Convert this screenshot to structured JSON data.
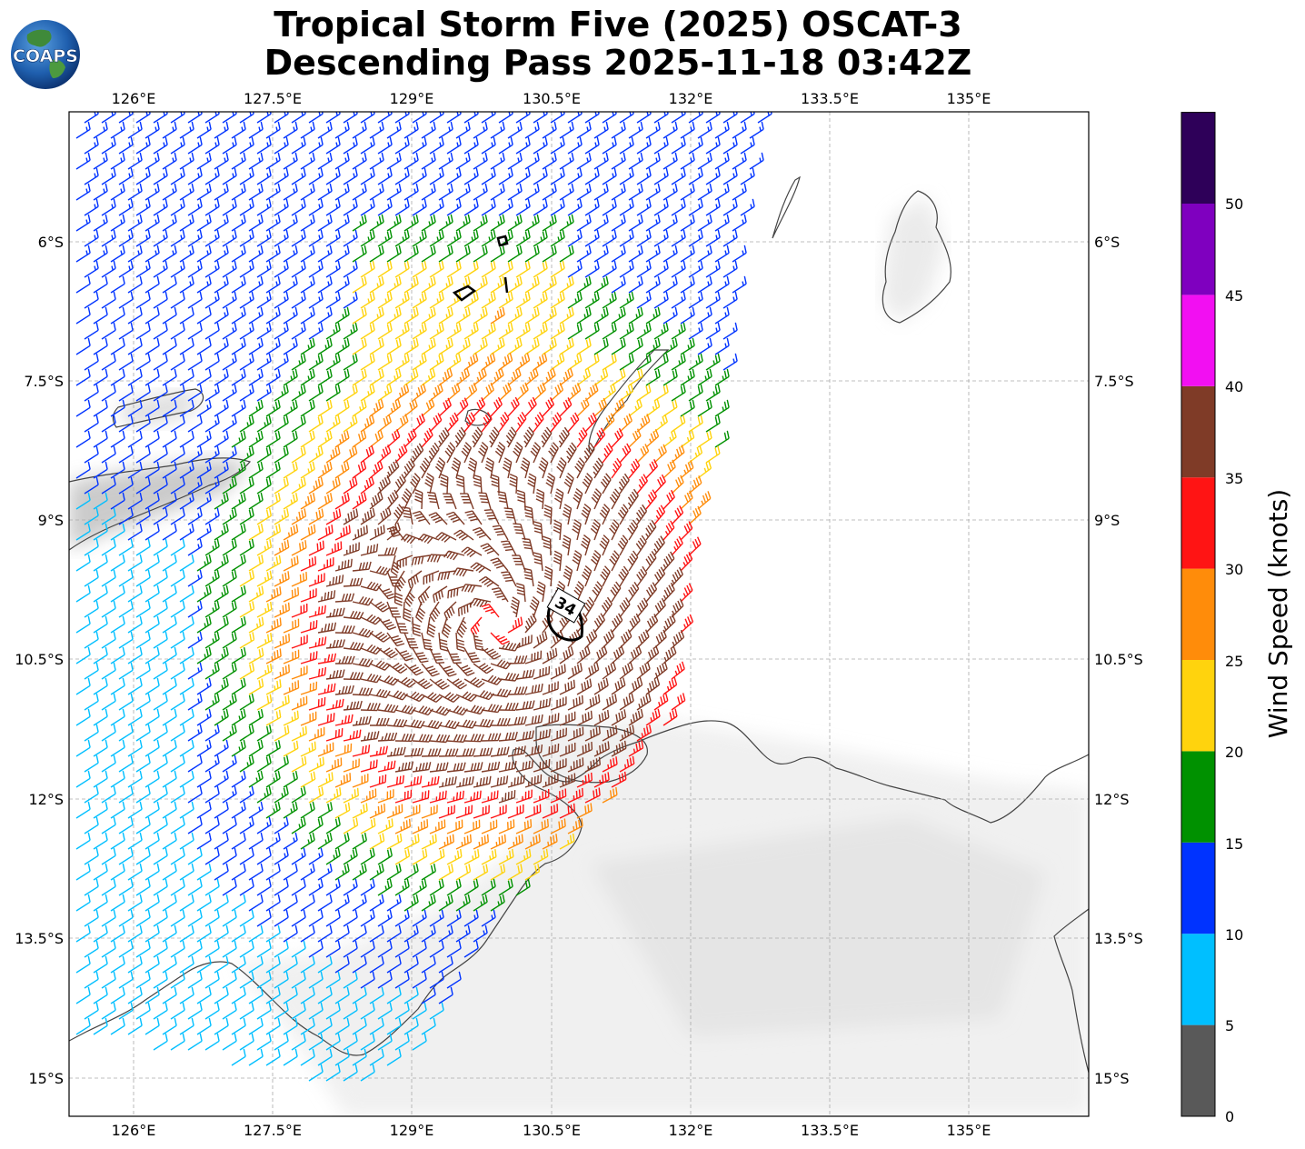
{
  "title": {
    "line1": "Tropical Storm Five (2025) OSCAT-3",
    "line2": "Descending Pass 2025-11-18 03:42Z"
  },
  "logo": {
    "text": "COAPS"
  },
  "map": {
    "lon_labels": [
      "126°E",
      "127.5°E",
      "129°E",
      "130.5°E",
      "132°E",
      "133.5°E",
      "135°E"
    ],
    "lat_labels": [
      "6°S",
      "7.5°S",
      "9°S",
      "10.5°S",
      "12°S",
      "13.5°S",
      "15°S"
    ],
    "contour_label": "34",
    "storm_center": {
      "lon": 129.9,
      "lat": -10.1
    }
  },
  "colorbar": {
    "label": "Wind Speed (knots)",
    "ticks": [
      "0",
      "5",
      "10",
      "15",
      "20",
      "25",
      "30",
      "35",
      "40",
      "45",
      "50"
    ],
    "colors": [
      "#595959",
      "#00bfff",
      "#0033ff",
      "#009100",
      "#ffd30d",
      "#ff8c0a",
      "#ff1414",
      "#7f3b27",
      "#f20ff2",
      "#7f00bf",
      "#2e0059"
    ]
  }
}
